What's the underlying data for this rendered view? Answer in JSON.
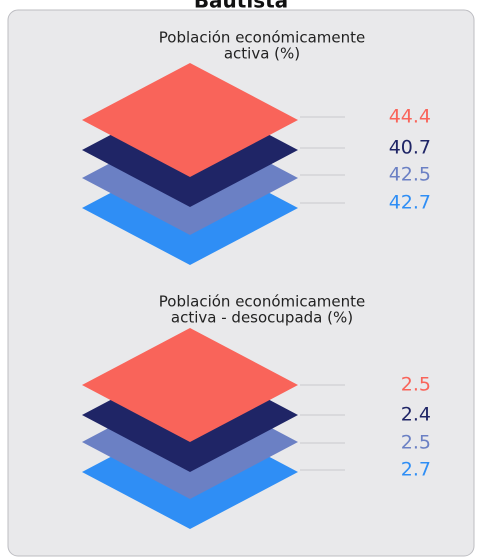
{
  "header": {
    "title": "Bautista"
  },
  "panels": [
    {
      "title": [
        "Población económicamente",
        "activa (%)"
      ],
      "items": [
        {
          "value": 44.4,
          "color": "#f9645a"
        },
        {
          "value": 40.7,
          "color": "#1f2566"
        },
        {
          "value": 42.5,
          "color": "#6b80c4"
        },
        {
          "value": 42.7,
          "color": "#2f8ef5"
        }
      ]
    },
    {
      "title": [
        "Población económicamente",
        "activa - desocupada (%)"
      ],
      "items": [
        {
          "value": 2.5,
          "color": "#f9645a"
        },
        {
          "value": 2.4,
          "color": "#1f2566"
        },
        {
          "value": 2.5,
          "color": "#6b80c4"
        },
        {
          "value": 2.7,
          "color": "#2f8ef5"
        }
      ]
    }
  ]
}
